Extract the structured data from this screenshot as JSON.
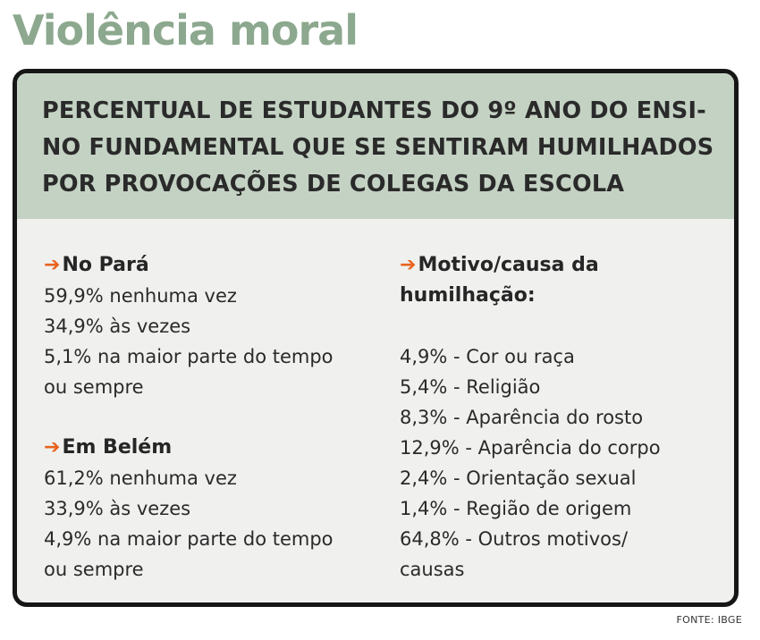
{
  "title": "Violência moral",
  "headline_lines": [
    "PERCENTUAL DE ESTUDANTES DO 9º ANO DO ENSI-",
    "NO FUNDAMENTAL QUE SE SENTIRAM HUMILHADOS",
    "POR PROVOCAÇÕES DE COLEGAS DA ESCOLA"
  ],
  "arrow_glyph": "➔",
  "colors": {
    "title": "#8ca88e",
    "banner": "#c4d2c4",
    "arrow": "#e8641e",
    "border": "#161616"
  },
  "para": {
    "heading": "No Pará",
    "lines": [
      "59,9% nenhuma vez",
      "34,9% às vezes",
      "5,1% na maior parte do tempo",
      "ou sempre"
    ]
  },
  "belem": {
    "heading": "Em Belém",
    "lines": [
      "61,2% nenhuma vez",
      "33,9% às vezes",
      "4,9% na maior parte do tempo",
      "ou sempre"
    ]
  },
  "motivos": {
    "heading_lines": [
      "Motivo/causa da",
      "humilhação:"
    ],
    "lines": [
      "4,9% - Cor ou raça",
      "5,4% - Religião",
      "8,3% - Aparência do rosto",
      "12,9% - Aparência do corpo",
      "2,4% - Orientação sexual",
      "1,4% - Região de origem",
      "64,8% - Outros motivos/",
      "causas"
    ]
  },
  "source": "FONTE: IBGE"
}
